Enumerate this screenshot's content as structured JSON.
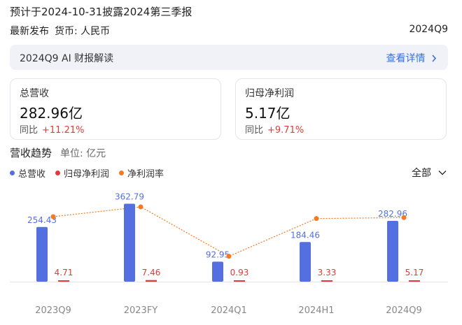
{
  "header": {
    "note": "预计于2024-10-31披露2024第三季报",
    "release": "最新发布",
    "currency": "货币: 人民币",
    "period": "2024Q9"
  },
  "ai_bar": {
    "title": "2024Q9 AI 财报解读",
    "detail": "查看详情"
  },
  "cards": [
    {
      "label": "总营收",
      "value": "282.96亿",
      "yoy_label": "同比",
      "yoy_value": "+11.21%"
    },
    {
      "label": "归母净利润",
      "value": "5.17亿",
      "yoy_label": "同比",
      "yoy_value": "+9.71%"
    }
  ],
  "trend": {
    "title": "营收趋势",
    "unit": "单位: 亿元",
    "filter": "全部",
    "legend": [
      {
        "name": "总营收",
        "color": "#5470e0"
      },
      {
        "name": "归母净利润",
        "color": "#e03a3a"
      },
      {
        "name": "净利润率",
        "color": "#f07b24"
      }
    ]
  },
  "chart_data": {
    "type": "bar",
    "categories": [
      "2023Q9",
      "2023FY",
      "2024Q1",
      "2024H1",
      "2024Q9"
    ],
    "series": [
      {
        "name": "总营收",
        "type": "bar",
        "color": "#5470e0",
        "values": [
          254.43,
          362.79,
          92.95,
          184.46,
          282.96
        ]
      },
      {
        "name": "归母净利润",
        "type": "bar",
        "color": "#e03a3a",
        "values": [
          4.71,
          7.46,
          0.93,
          3.33,
          5.17
        ]
      },
      {
        "name": "净利润率",
        "type": "line",
        "color": "#f07b24",
        "values": [
          1.85,
          2.06,
          1.0,
          1.81,
          1.83
        ]
      }
    ],
    "ylim": [
      0,
      400
    ]
  }
}
